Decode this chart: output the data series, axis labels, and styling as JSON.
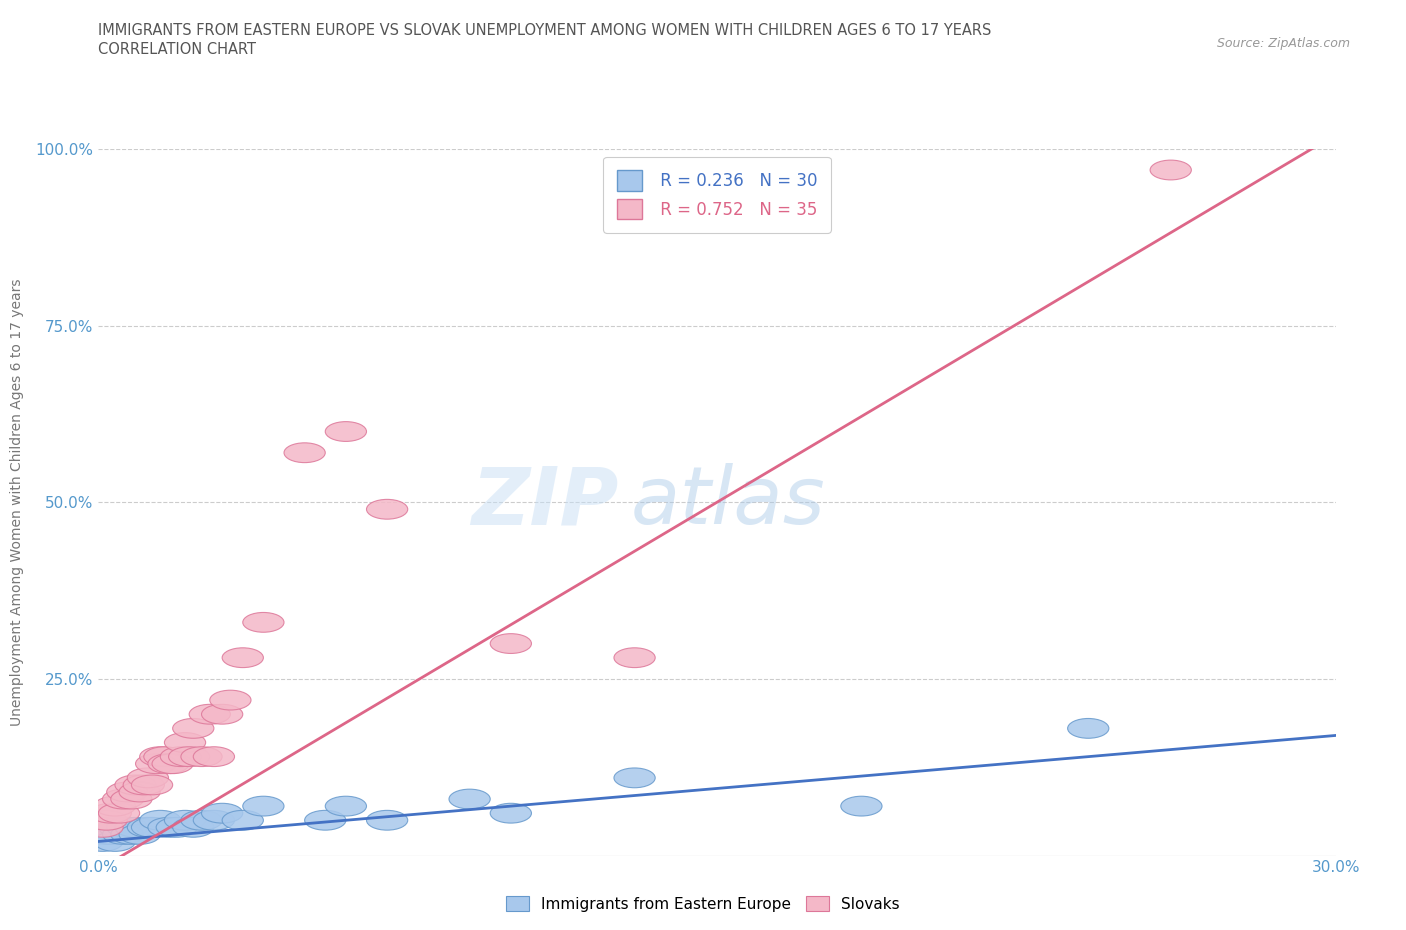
{
  "title_line1": "IMMIGRANTS FROM EASTERN EUROPE VS SLOVAK UNEMPLOYMENT AMONG WOMEN WITH CHILDREN AGES 6 TO 17 YEARS",
  "title_line2": "CORRELATION CHART",
  "source_text": "Source: ZipAtlas.com",
  "ylabel": "Unemployment Among Women with Children Ages 6 to 17 years",
  "xlim": [
    0.0,
    0.3
  ],
  "ylim": [
    0.0,
    1.0
  ],
  "xticks": [
    0.0,
    0.05,
    0.1,
    0.15,
    0.2,
    0.25,
    0.3
  ],
  "xticklabels": [
    "0.0%",
    "",
    "",
    "",
    "",
    "",
    "30.0%"
  ],
  "yticks": [
    0.0,
    0.25,
    0.5,
    0.75,
    1.0
  ],
  "yticklabels": [
    "",
    "25.0%",
    "50.0%",
    "75.0%",
    "100.0%"
  ],
  "series1_label": "Immigrants from Eastern Europe",
  "series1_color": "#A8C8EC",
  "series1_edge": "#6699CC",
  "series1_R": 0.236,
  "series1_N": 30,
  "series1_line_color": "#4472C4",
  "series2_label": "Slovaks",
  "series2_color": "#F4B8C8",
  "series2_edge": "#DD7799",
  "series2_R": 0.752,
  "series2_N": 35,
  "series2_line_color": "#DD6688",
  "watermark_zip": "ZIP",
  "watermark_atlas": "atlas",
  "background_color": "#FFFFFF",
  "grid_color": "#CCCCCC",
  "series1_x": [
    0.001,
    0.002,
    0.003,
    0.004,
    0.005,
    0.006,
    0.007,
    0.008,
    0.009,
    0.01,
    0.012,
    0.013,
    0.015,
    0.017,
    0.019,
    0.021,
    0.023,
    0.025,
    0.028,
    0.03,
    0.035,
    0.04,
    0.055,
    0.06,
    0.07,
    0.09,
    0.1,
    0.13,
    0.185,
    0.24
  ],
  "series1_y": [
    0.02,
    0.03,
    0.03,
    0.02,
    0.04,
    0.03,
    0.04,
    0.03,
    0.04,
    0.03,
    0.04,
    0.04,
    0.05,
    0.04,
    0.04,
    0.05,
    0.04,
    0.05,
    0.05,
    0.06,
    0.05,
    0.07,
    0.05,
    0.07,
    0.05,
    0.08,
    0.06,
    0.11,
    0.07,
    0.18
  ],
  "series2_x": [
    0.001,
    0.002,
    0.003,
    0.004,
    0.005,
    0.006,
    0.007,
    0.008,
    0.009,
    0.01,
    0.011,
    0.012,
    0.013,
    0.014,
    0.015,
    0.016,
    0.017,
    0.018,
    0.02,
    0.021,
    0.022,
    0.023,
    0.025,
    0.027,
    0.028,
    0.03,
    0.032,
    0.035,
    0.04,
    0.05,
    0.06,
    0.07,
    0.1,
    0.13,
    0.26
  ],
  "series2_y": [
    0.04,
    0.05,
    0.06,
    0.07,
    0.06,
    0.08,
    0.09,
    0.08,
    0.1,
    0.09,
    0.1,
    0.11,
    0.1,
    0.13,
    0.14,
    0.14,
    0.13,
    0.13,
    0.14,
    0.16,
    0.14,
    0.18,
    0.14,
    0.2,
    0.14,
    0.2,
    0.22,
    0.28,
    0.33,
    0.57,
    0.6,
    0.49,
    0.3,
    0.28,
    0.97
  ],
  "trendline1_x": [
    0.0,
    0.3
  ],
  "trendline1_y": [
    0.02,
    0.17
  ],
  "trendline2_x": [
    0.0,
    0.3
  ],
  "trendline2_y": [
    -0.02,
    1.02
  ]
}
